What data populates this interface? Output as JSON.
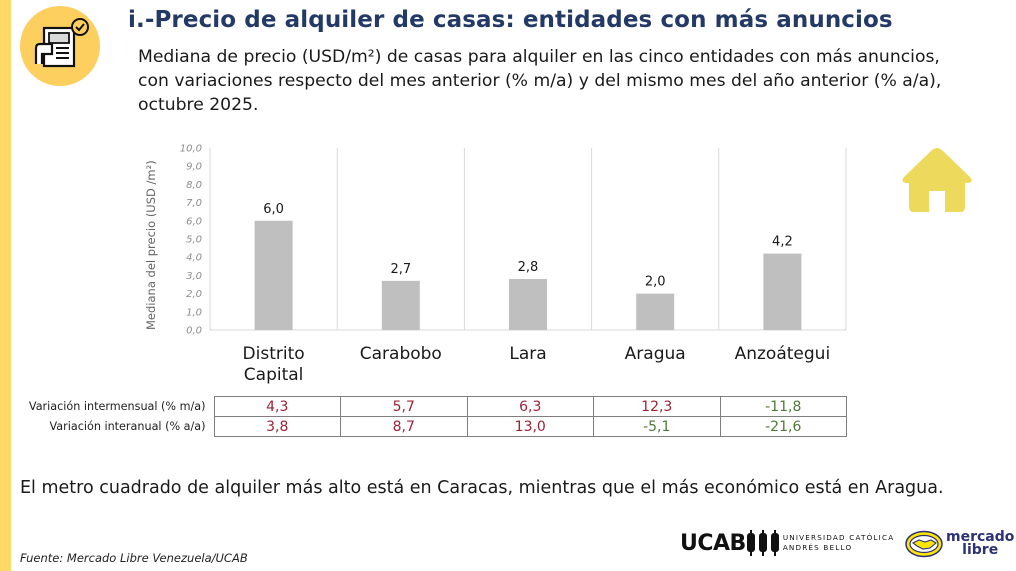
{
  "header": {
    "title": "i.-Precio de alquiler de casas: entidades con más anuncios",
    "subtitle": "Mediana de precio (USD/m²) de casas para alquiler en las cinco entidades con más anuncios, con variaciones respecto del mes anterior (% m/a) y del mismo mes del año anterior (% a/a), octubre 2025.",
    "badge_icon": "document-check-icon"
  },
  "colors": {
    "accent_yellow": "#FFD966",
    "title_blue": "#233A67",
    "bar_gray": "#BFBFBF",
    "positive_red": "#9B2335",
    "negative_green": "#4E7A3A",
    "house_yellow": "#EDD95C"
  },
  "chart_data": {
    "type": "bar",
    "title": "",
    "xlabel": "",
    "ylabel": "Mediana del precio (USD /m²)",
    "ylim": [
      0,
      10
    ],
    "yticks": [
      "0,0",
      "1,0",
      "2,0",
      "3,0",
      "4,0",
      "5,0",
      "6,0",
      "7,0",
      "8,0",
      "9,0",
      "10,0"
    ],
    "ytick_values": [
      0,
      1,
      2,
      3,
      4,
      5,
      6,
      7,
      8,
      9,
      10
    ],
    "categories": [
      "Distrito Capital",
      "Carabobo",
      "Lara",
      "Aragua",
      "Anzoátegui"
    ],
    "category_lines": [
      [
        "Distrito",
        "Capital"
      ],
      [
        "Carabobo"
      ],
      [
        "Lara"
      ],
      [
        "Aragua"
      ],
      [
        "Anzoátegui"
      ]
    ],
    "values": [
      6.0,
      2.7,
      2.8,
      2.0,
      4.2
    ],
    "data_labels": [
      "6,0",
      "2,7",
      "2,8",
      "2,0",
      "4,2"
    ],
    "grid": "vertical separators between categories",
    "legend": "none"
  },
  "variation_table": {
    "rows": [
      {
        "label": "Variación intermensual (% m/a)",
        "values": [
          "4,3",
          "5,7",
          "6,3",
          "12,3",
          "-11,8"
        ]
      },
      {
        "label": "Variación interanual (% a/a)",
        "values": [
          "3,8",
          "8,7",
          "13,0",
          "-5,1",
          "-21,6"
        ]
      }
    ]
  },
  "note": "El metro cuadrado de alquiler más alto está en Caracas, mientras que el más económico está en Aragua.",
  "footer": {
    "source": "Fuente: Mercado Libre Venezuela/UCAB",
    "ucab_logo_word": "UCAB",
    "ucab_logo_line1": "UNIVERSIDAD CATÓLICA",
    "ucab_logo_line2": "ANDRÉS BELLO",
    "ml_logo_line1": "mercado",
    "ml_logo_line2": "libre"
  },
  "decor": {
    "house_icon": "house-icon"
  }
}
